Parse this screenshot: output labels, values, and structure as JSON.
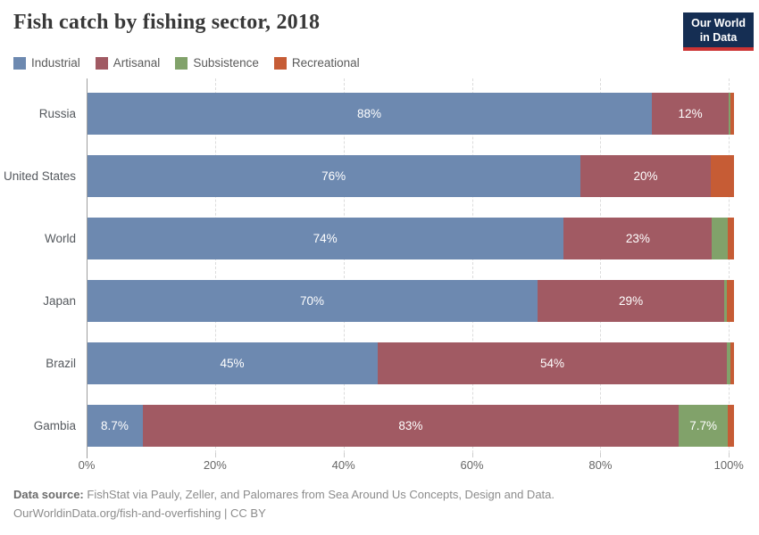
{
  "header": {
    "title": "Fish catch by fishing sector, 2018",
    "logo": {
      "line1": "Our World",
      "line2": "in Data"
    },
    "logo_colors": {
      "background": "#152e53",
      "accent": "#cc3434"
    }
  },
  "chart_data": {
    "type": "bar",
    "stacked": true,
    "orientation": "horizontal",
    "title": "Fish catch by fishing sector, 2018",
    "categories": [
      "Russia",
      "United States",
      "World",
      "Japan",
      "Brazil",
      "Gambia"
    ],
    "series": [
      {
        "name": "Industrial",
        "color": "#6d89b0",
        "values": [
          88,
          76,
          74,
          70,
          45,
          8.7
        ],
        "value_labels": [
          "88%",
          "76%",
          "74%",
          "70%",
          "45%",
          "8.7%"
        ]
      },
      {
        "name": "Artisanal",
        "color": "#a15a63",
        "values": [
          12,
          20,
          23,
          29,
          54,
          83
        ],
        "value_labels": [
          "12%",
          "20%",
          "23%",
          "29%",
          "54%",
          "83%"
        ]
      },
      {
        "name": "Subsistence",
        "color": "#81a26a",
        "values": [
          0.3,
          0,
          2.4,
          0.4,
          0.6,
          7.7
        ],
        "value_labels": [
          "",
          "",
          "",
          "",
          "",
          "7.7%"
        ]
      },
      {
        "name": "Recreational",
        "color": "#c65c35",
        "values": [
          0.5,
          3.6,
          1.0,
          1.1,
          0.5,
          0.9
        ],
        "value_labels": [
          "",
          "",
          "",
          "",
          "",
          ""
        ]
      }
    ],
    "x_axis": {
      "ticks": [
        0,
        20,
        40,
        60,
        80,
        100
      ],
      "tick_labels": [
        "0%",
        "20%",
        "40%",
        "60%",
        "80%",
        "100%"
      ],
      "max_rendered": 100.8
    },
    "legend_position": "top",
    "gridlines": "vertical-dashed",
    "grid_color": "#dcdcdc",
    "axis_color": "#9f9f9f"
  },
  "footer": {
    "source_label": "Data source:",
    "source_text": "FishStat via Pauly, Zeller, and Palomares from Sea Around Us Concepts, Design and Data.",
    "license_line": "OurWorldinData.org/fish-and-overfishing | CC BY"
  }
}
